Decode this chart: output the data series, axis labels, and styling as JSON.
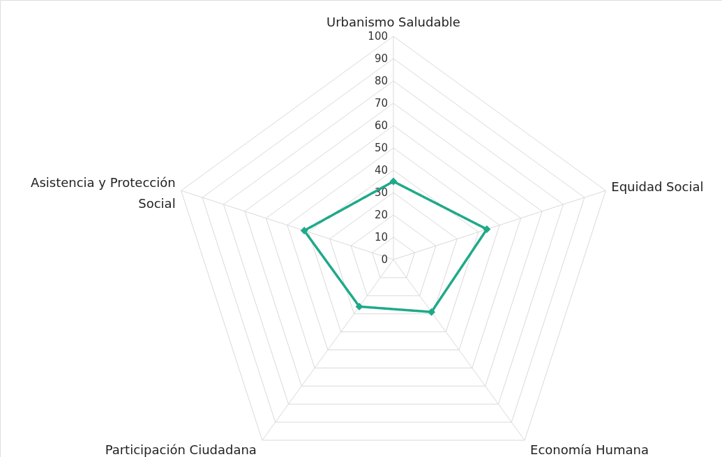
{
  "chart_data": {
    "type": "radar",
    "categories": [
      "Urbanismo Saludable",
      "Equidad Social",
      "Economía Humana",
      "Participación Ciudadana",
      "Asistencia y Protección\nSocial"
    ],
    "series": [
      {
        "color": "#1fa98a",
        "values": [
          35,
          44,
          29,
          26,
          42
        ]
      }
    ],
    "ylim": [
      0,
      100
    ],
    "yticks": [
      0,
      10,
      20,
      30,
      40,
      50,
      60,
      70,
      80,
      90,
      100
    ],
    "grid": true,
    "marker": "diamond",
    "line_style": "solid"
  }
}
